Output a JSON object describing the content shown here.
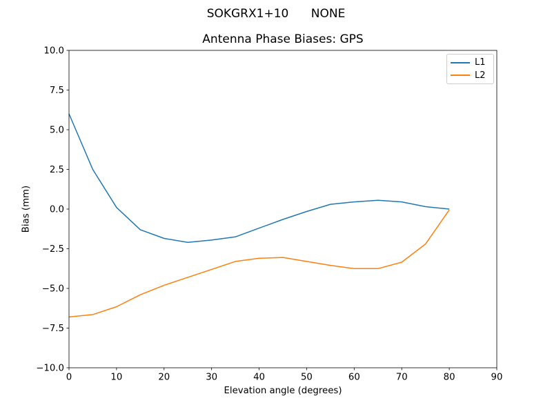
{
  "figure": {
    "suptitle": "SOKGRX1+10      NONE"
  },
  "chart_data": {
    "type": "line",
    "title": "Antenna Phase Biases: GPS",
    "xlabel": "Elevation angle (degrees)",
    "ylabel": "Bias (mm)",
    "xlim": [
      0,
      90
    ],
    "ylim": [
      -10,
      10
    ],
    "grid": false,
    "legend_position": "upper right",
    "x_ticks": [
      0,
      10,
      20,
      30,
      40,
      50,
      60,
      70,
      80,
      90
    ],
    "x_tick_labels": [
      "0",
      "10",
      "20",
      "30",
      "40",
      "50",
      "60",
      "70",
      "80",
      "90"
    ],
    "y_ticks": [
      10.0,
      7.5,
      5.0,
      2.5,
      0.0,
      -2.5,
      -5.0,
      -7.5,
      -10.0
    ],
    "y_tick_labels": [
      "10.0",
      "7.5",
      "5.0",
      "2.5",
      "0.0",
      "−2.5",
      "−5.0",
      "−7.5",
      "−10.0"
    ],
    "x": [
      0,
      5,
      10,
      15,
      20,
      25,
      30,
      35,
      40,
      45,
      50,
      55,
      60,
      65,
      70,
      75,
      80
    ],
    "series": [
      {
        "name": "L1",
        "color": "#1f77b4",
        "values": [
          6.0,
          2.5,
          0.1,
          -1.3,
          -1.85,
          -2.1,
          -1.95,
          -1.75,
          -1.2,
          -0.65,
          -0.15,
          0.3,
          0.45,
          0.55,
          0.45,
          0.15,
          0.0
        ]
      },
      {
        "name": "L2",
        "color": "#ff7f0e",
        "values": [
          -6.8,
          -6.65,
          -6.15,
          -5.4,
          -4.8,
          -4.3,
          -3.8,
          -3.3,
          -3.1,
          -3.05,
          -3.3,
          -3.55,
          -3.75,
          -3.75,
          -3.35,
          -2.2,
          -0.05
        ]
      }
    ]
  }
}
